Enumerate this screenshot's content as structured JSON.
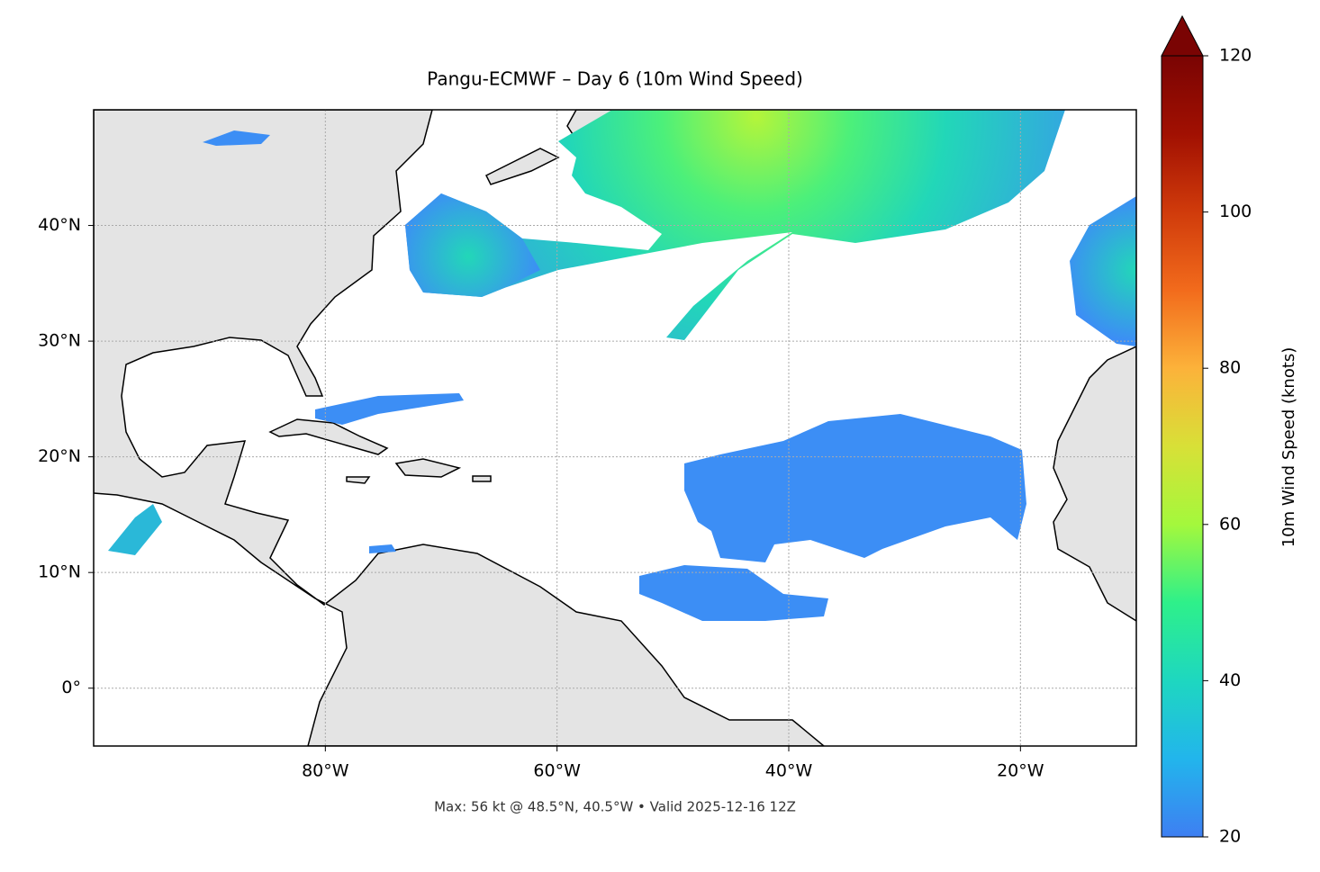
{
  "chart_data": {
    "type": "map",
    "title": "Pangu-ECMWF – Day 6 (10m Wind Speed)",
    "footnote": "Max: 56 kt @ 48.5°N, 40.5°W • Valid 2025-12-16 12Z",
    "xlim": [
      -100,
      -10
    ],
    "ylim": [
      -5,
      50
    ],
    "xticks": [
      {
        "value": -80,
        "label": "80°W"
      },
      {
        "value": -60,
        "label": "60°W"
      },
      {
        "value": -40,
        "label": "40°W"
      },
      {
        "value": -20,
        "label": "20°W"
      }
    ],
    "yticks": [
      {
        "value": 0,
        "label": "0°"
      },
      {
        "value": 10,
        "label": "10°N"
      },
      {
        "value": 20,
        "label": "20°N"
      },
      {
        "value": 30,
        "label": "30°N"
      },
      {
        "value": 40,
        "label": "40°N"
      }
    ],
    "grid": true,
    "colorbar": {
      "label": "10m Wind Speed (knots)",
      "lim": [
        20,
        120
      ],
      "ticks": [
        20,
        40,
        60,
        80,
        100,
        120
      ],
      "colors": [
        "#3e7ff2",
        "#22b5ec",
        "#1ed7c0",
        "#2ef08a",
        "#a4f83c",
        "#d8e037",
        "#fcb23a",
        "#f26b1c",
        "#d03b0b",
        "#a11002",
        "#7a0403"
      ]
    }
  }
}
